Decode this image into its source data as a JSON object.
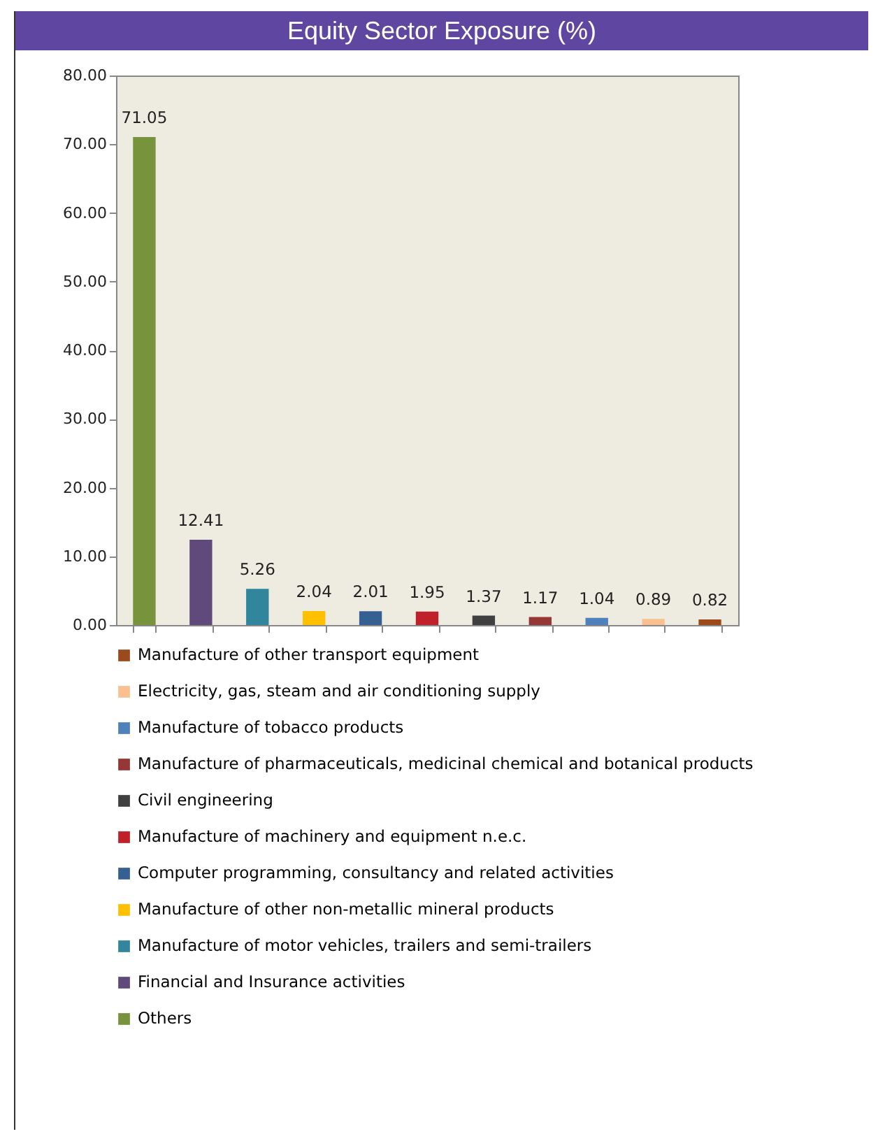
{
  "chart_data": {
    "type": "bar",
    "title": "Equity Sector Exposure (%)",
    "categories": [
      null,
      null,
      null,
      null,
      null,
      null,
      null,
      null,
      null,
      null,
      null
    ],
    "series": [
      {
        "name": "Others",
        "color": "#77933c",
        "values": [
          71.05,
          null,
          null,
          null,
          null,
          null,
          null,
          null,
          null,
          null,
          null
        ]
      },
      {
        "name": "Financial and Insurance activities",
        "color": "#604a7b",
        "values": [
          null,
          12.41,
          null,
          null,
          null,
          null,
          null,
          null,
          null,
          null,
          null
        ]
      },
      {
        "name": "Manufacture of motor vehicles, trailers and semi-trailers",
        "color": "#31859c",
        "values": [
          null,
          null,
          5.26,
          null,
          null,
          null,
          null,
          null,
          null,
          null,
          null
        ]
      },
      {
        "name": "Manufacture of other non-metallic mineral products",
        "color": "#ffc000",
        "values": [
          null,
          null,
          null,
          2.04,
          null,
          null,
          null,
          null,
          null,
          null,
          null
        ]
      },
      {
        "name": "Computer programming, consultancy and related activities",
        "color": "#376092",
        "values": [
          null,
          null,
          null,
          null,
          2.01,
          null,
          null,
          null,
          null,
          null,
          null
        ]
      },
      {
        "name": "Manufacture of machinery and equipment n.e.c.",
        "color": "#c0202a",
        "values": [
          null,
          null,
          null,
          null,
          null,
          1.95,
          null,
          null,
          null,
          null,
          null
        ]
      },
      {
        "name": "Civil engineering",
        "color": "#404040",
        "values": [
          null,
          null,
          null,
          null,
          null,
          null,
          1.37,
          null,
          null,
          null,
          null
        ]
      },
      {
        "name": "Manufacture of pharmaceuticals, medicinal chemical and botanical products",
        "color": "#953735",
        "values": [
          null,
          null,
          null,
          null,
          null,
          null,
          null,
          1.17,
          null,
          null,
          null
        ]
      },
      {
        "name": "Manufacture of tobacco products",
        "color": "#4f81bd",
        "values": [
          null,
          null,
          null,
          null,
          null,
          null,
          null,
          null,
          1.04,
          null,
          null
        ]
      },
      {
        "name": "Electricity, gas, steam and air conditioning supply",
        "color": "#fac090",
        "values": [
          null,
          null,
          null,
          null,
          null,
          null,
          null,
          null,
          null,
          0.89,
          null
        ]
      },
      {
        "name": "Manufacture of other transport equipment",
        "color": "#9c4a1c",
        "values": [
          null,
          null,
          null,
          null,
          null,
          null,
          null,
          null,
          null,
          null,
          0.82
        ]
      }
    ],
    "ylim": [
      0,
      80
    ],
    "yticks": [
      {
        "value": 0,
        "label": "0.00"
      },
      {
        "value": 10,
        "label": "10.00"
      },
      {
        "value": 20,
        "label": "20.00"
      },
      {
        "value": 30,
        "label": "30.00"
      },
      {
        "value": 40,
        "label": "40.00"
      },
      {
        "value": 50,
        "label": "50.00"
      },
      {
        "value": 60,
        "label": "60.00"
      },
      {
        "value": 70,
        "label": "70.00"
      },
      {
        "value": 80,
        "label": "80.00"
      }
    ],
    "stacked": true,
    "data_labels": true,
    "legend": "bottom",
    "grid": false,
    "tick_labels": "y"
  }
}
